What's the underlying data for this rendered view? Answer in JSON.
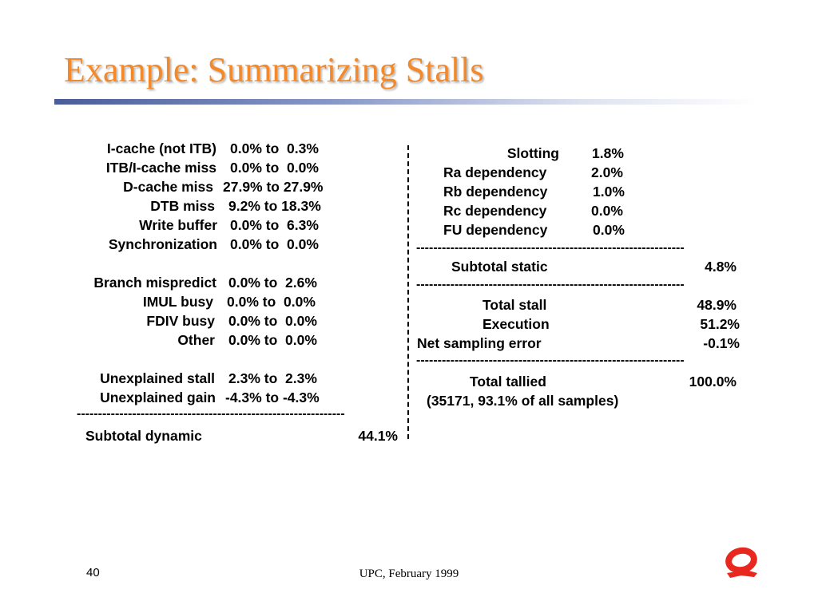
{
  "slide": {
    "title": "Example: Summarizing Stalls",
    "page_number": "40",
    "footer": "UPC, February 1999",
    "title_color": "#f28a2b",
    "logo_icon": "q-logo-icon",
    "logo_color": "#e8271e"
  },
  "dynamic": {
    "rows": [
      {
        "label": "I-cache (not ITB)",
        "range": "0.0% to  0.3%"
      },
      {
        "label": "ITB/I-cache miss",
        "range": "0.0% to  0.0%"
      },
      {
        "label": "D-cache miss",
        "range": "27.9% to 27.9%"
      },
      {
        "label": "DTB miss",
        "range": "9.2% to 18.3%"
      },
      {
        "label": "Write buffer",
        "range": "0.0% to  6.3%"
      },
      {
        "label": "Synchronization",
        "range": "0.0% to  0.0%"
      },
      {
        "label": "Branch mispredict",
        "range": "0.0% to  2.6%"
      },
      {
        "label": "IMUL busy",
        "range": "0.0% to  0.0%"
      },
      {
        "label": "FDIV busy",
        "range": "0.0% to  0.0%"
      },
      {
        "label": "Other",
        "range": "0.0% to  0.0%"
      },
      {
        "label": "Unexplained stall",
        "range": "2.3% to  2.3%"
      },
      {
        "label": "Unexplained gain",
        "range": "-4.3% to -4.3%"
      }
    ],
    "separator": "---------------------------------------------------------------",
    "subtotal_label": "Subtotal dynamic",
    "subtotal_value": "44.1%"
  },
  "static": {
    "rows": [
      {
        "label": "Slotting",
        "value": "1.8%"
      },
      {
        "label": "Ra dependency",
        "value": "2.0%"
      },
      {
        "label": "Rb dependency",
        "value": "1.0%"
      },
      {
        "label": "Rc dependency",
        "value": "0.0%"
      },
      {
        "label": "FU dependency",
        "value": "0.0%"
      }
    ],
    "separator": "---------------------------------------------------------------",
    "subtotal_label": "Subtotal static",
    "subtotal_value": "4.8%",
    "total_stall_label": "Total stall",
    "total_stall_value": "48.9%",
    "execution_label": "Execution",
    "execution_value": "51.2%",
    "net_error_label": "Net sampling error",
    "net_error_value": "-0.1%",
    "total_tallied_label": "Total tallied",
    "total_tallied_value": "100.0%",
    "samples_note": "(35171, 93.1% of all samples)"
  }
}
